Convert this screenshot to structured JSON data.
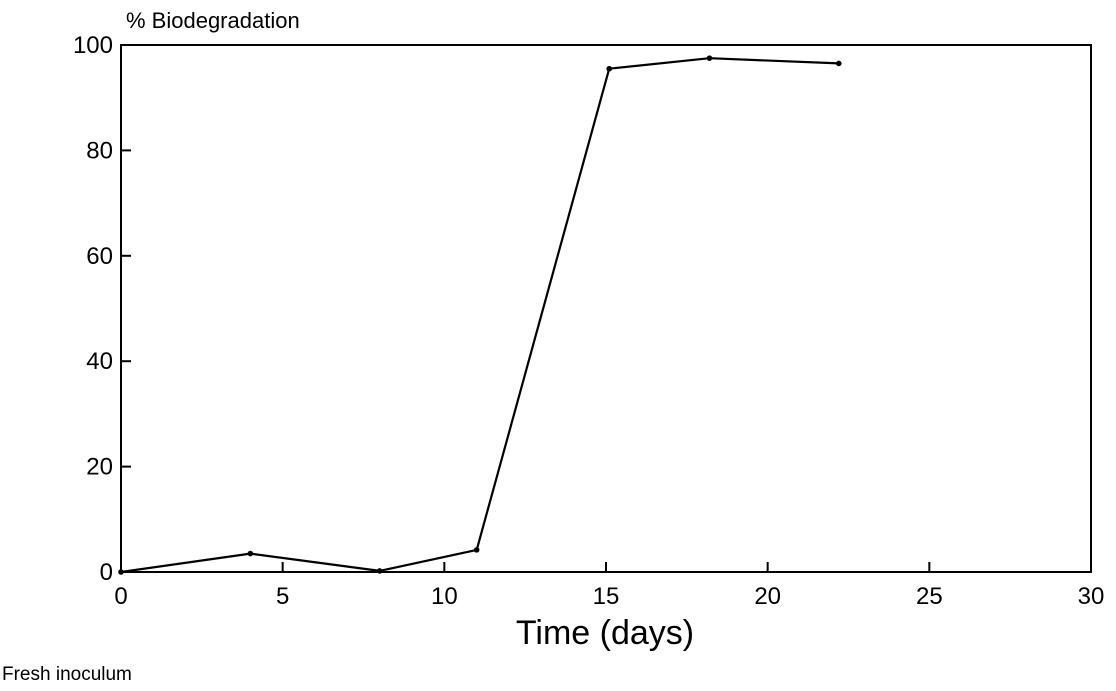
{
  "chart_data": {
    "type": "line",
    "title": "",
    "ylabel": "% Biodegradation",
    "xlabel": "Time (days)",
    "xlim": [
      0,
      30
    ],
    "ylim": [
      0,
      100
    ],
    "x_ticks": [
      0,
      5,
      10,
      15,
      20,
      25,
      30
    ],
    "y_ticks": [
      0,
      20,
      40,
      60,
      80,
      100
    ],
    "x_tick_labels": [
      "0",
      "5",
      "10",
      "15",
      "20",
      "25",
      "30"
    ],
    "y_tick_labels": [
      "0",
      "20",
      "40",
      "60",
      "80",
      "100"
    ],
    "grid": false,
    "legend": "none",
    "series": [
      {
        "x": [
          0,
          4,
          8,
          11,
          15.1,
          18.2,
          22.2
        ],
        "y": [
          0,
          3.5,
          0.2,
          4.2,
          95.5,
          97.5,
          96.5
        ]
      }
    ]
  },
  "caption": "Fresh inoculum",
  "colors": {
    "line": "#000000",
    "axes": "#000000",
    "background": "#ffffff"
  }
}
